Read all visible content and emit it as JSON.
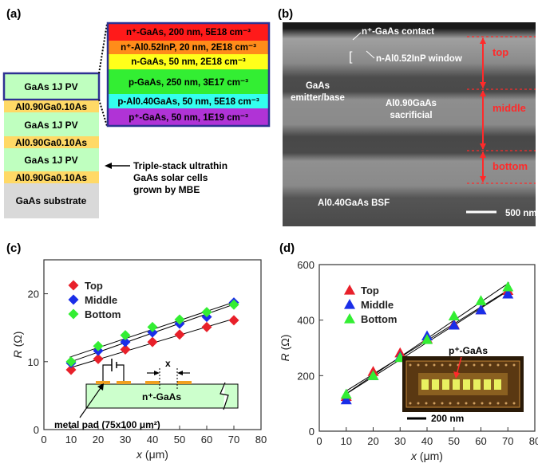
{
  "panel_labels": [
    "(a)",
    "(b)",
    "(c)",
    "(d)"
  ],
  "panel_a": {
    "stack": [
      "GaAs 1J PV",
      "Al0.90Ga0.10As",
      "GaAs 1J PV",
      "Al0.90Ga0.10As",
      "GaAs 1J PV",
      "Al0.90Ga0.10As",
      "GaAs substrate"
    ],
    "layers": [
      {
        "text": "n⁺-GaAs, 200 nm, 5E18 cm⁻³",
        "color": "#ff1a1a"
      },
      {
        "text": "n⁺-Al0.52InP, 20 nm, 2E18 cm⁻³",
        "color": "#ff8c1a"
      },
      {
        "text": "n-GaAs, 50 nm, 2E18 cm⁻³",
        "color": "#ffff1a"
      },
      {
        "text": "p-GaAs, 250 nm, 3E17 cm⁻³",
        "color": "#33ee33"
      },
      {
        "text": "p-Al0.40GaAs, 50 nm, 5E18 cm⁻³",
        "color": "#33ffee"
      },
      {
        "text": "p⁺-GaAs, 50 nm, 1E19 cm⁻³",
        "color": "#b033d6"
      }
    ],
    "note": [
      "Triple-stack ultrathin",
      "GaAs solar cells",
      "grown by MBE"
    ]
  },
  "panel_b": {
    "labels": [
      "n⁺-GaAs contact",
      "n-Al0.52InP window",
      "GaAs",
      "emitter/base",
      "Al0.90GaAs",
      "sacrificial",
      "Al0.40GaAs BSF",
      "500 nm"
    ],
    "regions": [
      "top",
      "middle",
      "bottom"
    ]
  },
  "panel_c_inset": {
    "layer": "n⁺-GaAs",
    "pad": "metal pad (75x100 μm²)",
    "gap": "x"
  },
  "panel_d_inset": {
    "label": "p⁺-GaAs",
    "scale": "200 nm"
  },
  "chart_data": [
    {
      "type": "scatter",
      "xlabel": "x (μm)",
      "ylabel": "R (Ω)",
      "xlim": [
        0,
        80
      ],
      "ylim": [
        0,
        25
      ],
      "xticks": [
        0,
        10,
        20,
        30,
        40,
        50,
        60,
        70,
        80
      ],
      "yticks": [
        0,
        10,
        20
      ],
      "legend_position": "top-left",
      "x": [
        10,
        20,
        30,
        40,
        50,
        60,
        70
      ],
      "series": [
        {
          "name": "Top",
          "color": "#e8202a",
          "marker": "diamond",
          "values": [
            8.8,
            10.4,
            11.8,
            12.9,
            14.0,
            15.1,
            16.1
          ]
        },
        {
          "name": "Middle",
          "color": "#1a2ee8",
          "marker": "diamond",
          "values": [
            9.8,
            11.6,
            12.9,
            14.3,
            15.6,
            16.6,
            18.7
          ]
        },
        {
          "name": "Bottom",
          "color": "#33ee33",
          "marker": "diamond",
          "values": [
            10.0,
            12.3,
            13.9,
            15.1,
            16.2,
            17.3,
            18.4
          ]
        }
      ]
    },
    {
      "type": "scatter",
      "xlabel": "x (μm)",
      "ylabel": "R (Ω)",
      "xlim": [
        0,
        80
      ],
      "ylim": [
        0,
        600
      ],
      "xticks": [
        0,
        10,
        20,
        30,
        40,
        50,
        60,
        70,
        80
      ],
      "yticks": [
        0,
        200,
        400,
        600
      ],
      "legend_position": "top-left",
      "x": [
        10,
        20,
        30,
        40,
        50,
        60,
        70
      ],
      "series": [
        {
          "name": "Top",
          "color": "#e8202a",
          "marker": "triangle",
          "values": [
            125,
            215,
            282,
            333,
            385,
            437,
            507
          ]
        },
        {
          "name": "Middle",
          "color": "#1a2ee8",
          "marker": "triangle",
          "values": [
            113,
            200,
            268,
            343,
            382,
            437,
            494
          ]
        },
        {
          "name": "Bottom",
          "color": "#33ee33",
          "marker": "triangle",
          "values": [
            133,
            200,
            265,
            330,
            415,
            470,
            520
          ]
        }
      ]
    }
  ]
}
